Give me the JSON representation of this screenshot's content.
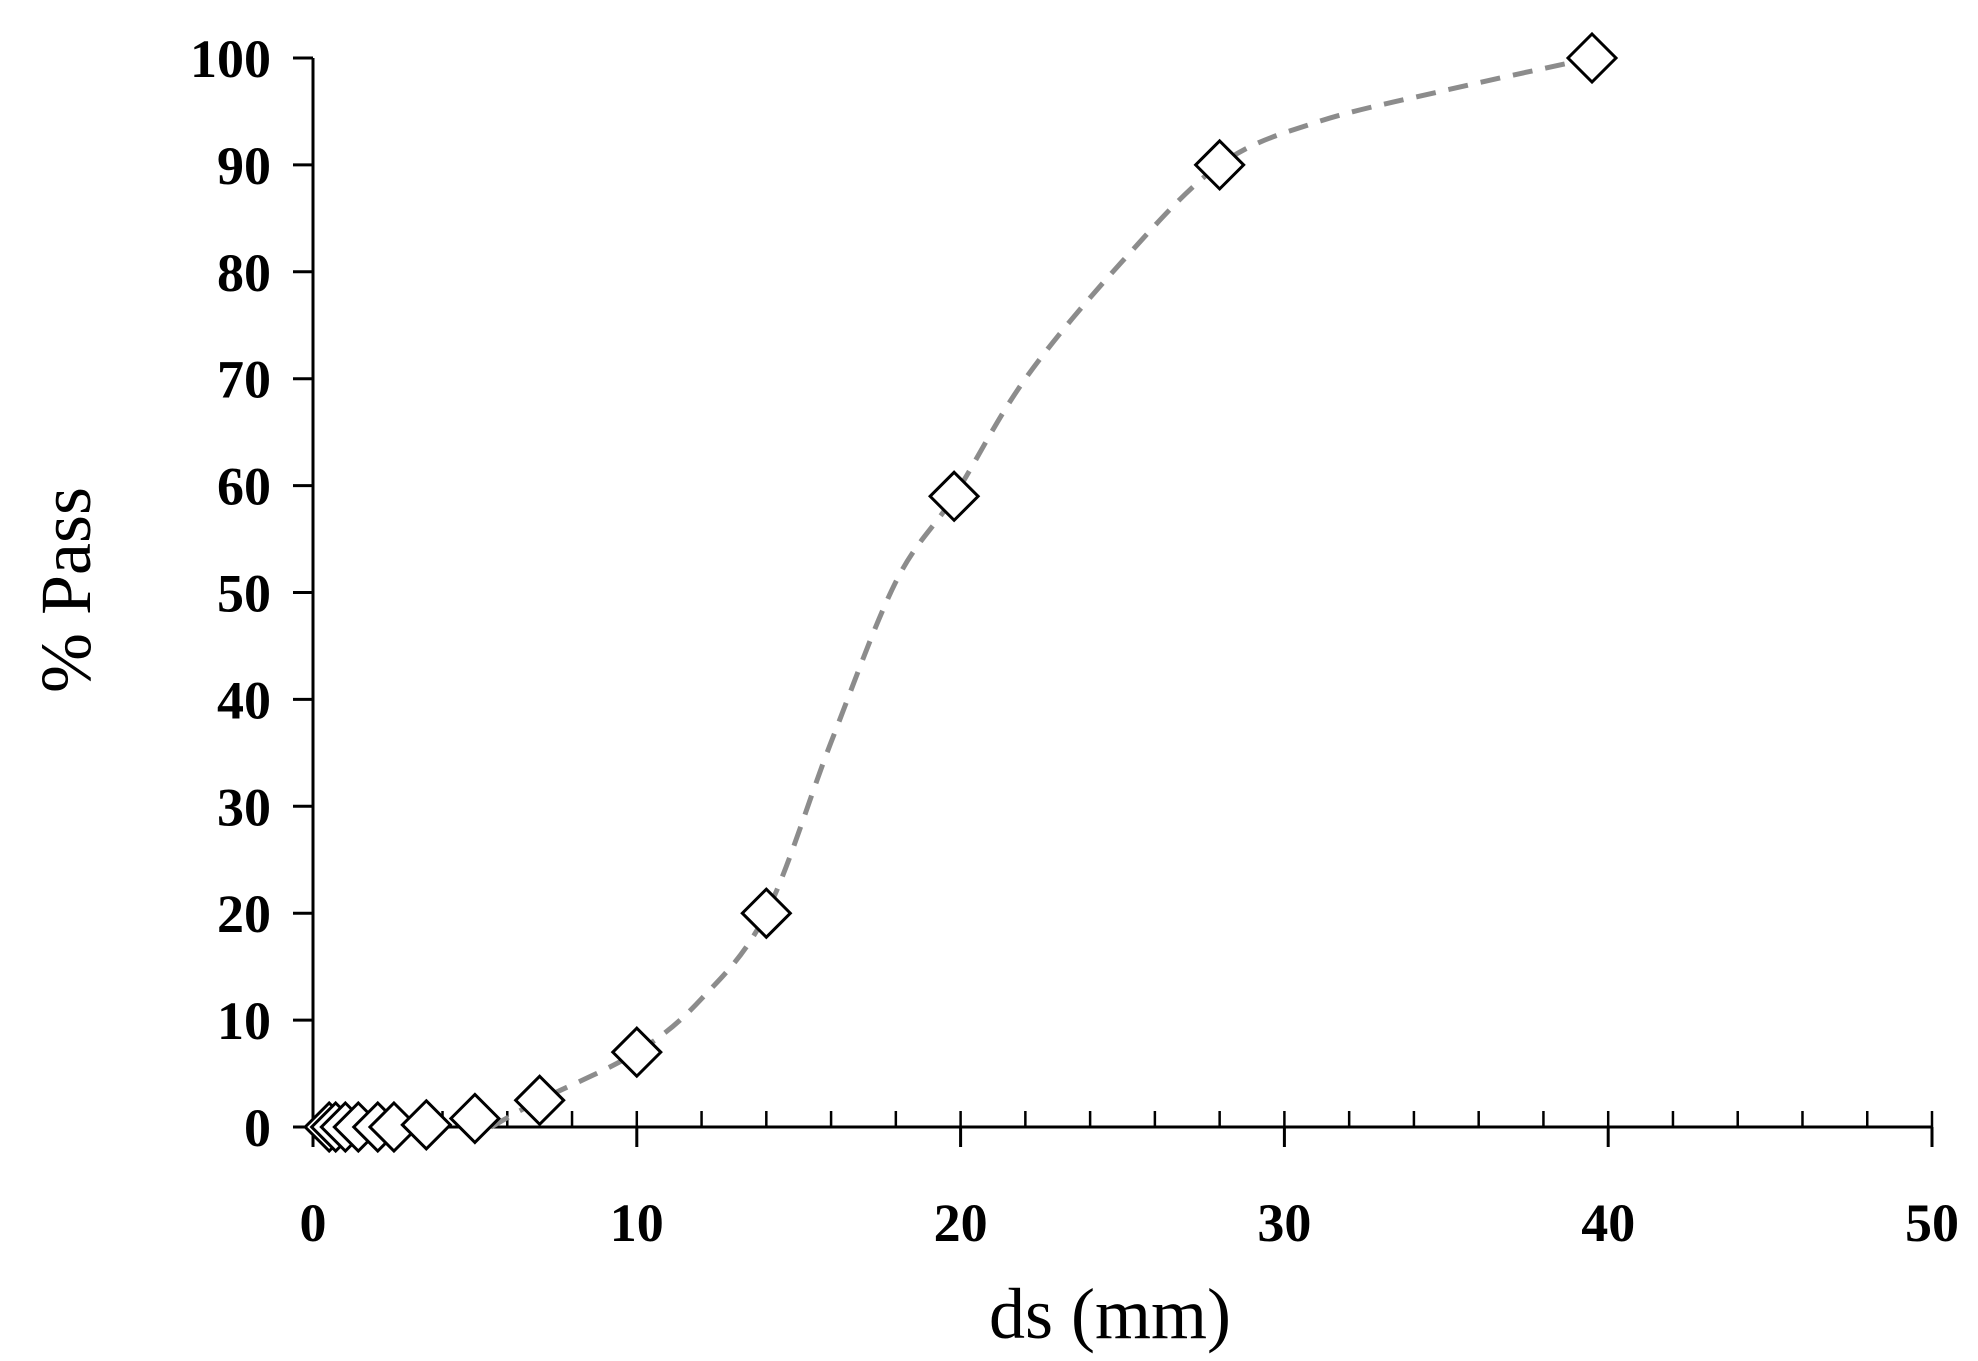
{
  "chart_data": {
    "type": "scatter",
    "xlabel": "ds (mm)",
    "ylabel": "% Pass",
    "xlim": [
      0,
      50
    ],
    "ylim": [
      0,
      100
    ],
    "x_ticks": [
      "0",
      "10",
      "20",
      "30",
      "40",
      "50"
    ],
    "y_ticks": [
      "0",
      "10",
      "20",
      "30",
      "40",
      "50",
      "60",
      "70",
      "80",
      "90",
      "100"
    ],
    "x_minor_step": 2,
    "grid": false,
    "marker": "open-diamond",
    "series": [
      {
        "points": [
          {
            "x": 0.5,
            "y": 0
          },
          {
            "x": 0.7,
            "y": 0
          },
          {
            "x": 1.0,
            "y": 0
          },
          {
            "x": 1.4,
            "y": 0
          },
          {
            "x": 2.0,
            "y": 0
          },
          {
            "x": 2.5,
            "y": 0
          },
          {
            "x": 3.5,
            "y": 0.2
          },
          {
            "x": 5.0,
            "y": 0.8
          },
          {
            "x": 7.0,
            "y": 2.5
          },
          {
            "x": 10.0,
            "y": 7
          },
          {
            "x": 14.0,
            "y": 20
          },
          {
            "x": 19.8,
            "y": 59
          },
          {
            "x": 28.0,
            "y": 90
          },
          {
            "x": 39.5,
            "y": 100
          }
        ]
      }
    ],
    "trend_line": {
      "style": "dashed",
      "color": "#8c8c8c",
      "points": [
        {
          "x": 5.5,
          "y": 0
        },
        {
          "x": 7.0,
          "y": 2.5
        },
        {
          "x": 10.0,
          "y": 7
        },
        {
          "x": 12.0,
          "y": 12
        },
        {
          "x": 14.0,
          "y": 20
        },
        {
          "x": 16.0,
          "y": 36
        },
        {
          "x": 18.0,
          "y": 51
        },
        {
          "x": 19.8,
          "y": 59
        },
        {
          "x": 22.0,
          "y": 70
        },
        {
          "x": 25.0,
          "y": 81
        },
        {
          "x": 28.0,
          "y": 90
        },
        {
          "x": 31.0,
          "y": 94
        },
        {
          "x": 35.0,
          "y": 97
        },
        {
          "x": 39.5,
          "y": 100
        }
      ]
    }
  }
}
